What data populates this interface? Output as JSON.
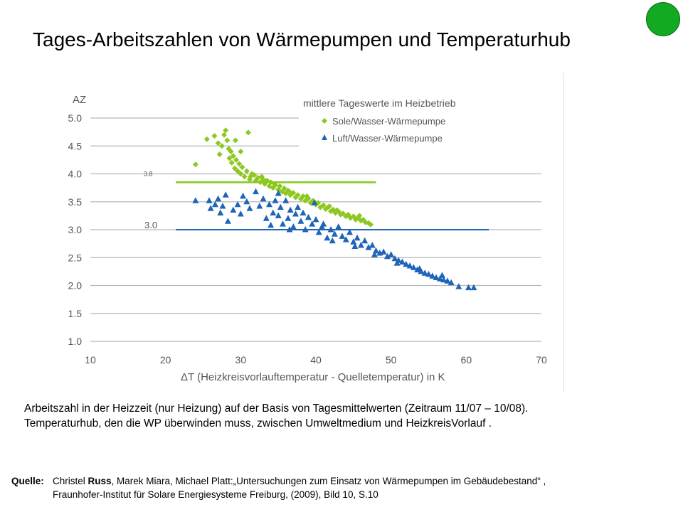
{
  "title": "Tages-Arbeitszahlen von Wärmepumpen und Temperaturhub",
  "caption": {
    "line1": "Arbeitszahl in der Heizzeit (nur Heizung) auf der Basis von Tagesmittelwerten (Zeitraum 11/07 – 10/08).",
    "line2": "Temperaturhub, den die WP überwinden muss, zwischen  Umweltmedium und HeizkreisVorlauf  ."
  },
  "source": {
    "label": "Quelle:",
    "author_pre": "Christel ",
    "author_bold": "Russ",
    "line1_rest": ", Marek Miara, Michael Platt:„Untersuchungen zum Einsatz von Wärmepumpen im Gebäudebestand“ ,",
    "line2": "Fraunhofer-Institut für Solare Energiesysteme Freiburg, (2009), Bild 10, S.10"
  },
  "colors": {
    "sole": "#8cc820",
    "luft": "#1f64b8",
    "badge": "#11aa22"
  },
  "chart_data": {
    "type": "scatter",
    "ylabel": "AZ",
    "xlabel": "ΔT (Heizkreisvorlauftemperatur - Quelletemperatur) in K",
    "xlim": [
      10,
      70
    ],
    "ylim": [
      1.0,
      5.0
    ],
    "xticks": [
      "10",
      "20",
      "30",
      "40",
      "50",
      "60",
      "70"
    ],
    "yticks": [
      "1.0",
      "1.5",
      "2.0",
      "2.5",
      "3.0",
      "3.5",
      "4.0",
      "4.5",
      "5.0"
    ],
    "grid": "horizontal",
    "legend_title": "mittlere Tageswerte im Heizbetrieb",
    "legend_position": "top-right",
    "series": [
      {
        "name": "Sole/Wasser-Wärmepumpe",
        "marker": "diamond",
        "points": [
          [
            24.0,
            4.17
          ],
          [
            25.5,
            4.62
          ],
          [
            26.5,
            4.68
          ],
          [
            27.0,
            4.55
          ],
          [
            27.2,
            4.35
          ],
          [
            27.5,
            4.5
          ],
          [
            27.8,
            4.7
          ],
          [
            28.0,
            4.78
          ],
          [
            28.2,
            4.6
          ],
          [
            28.4,
            4.45
          ],
          [
            28.5,
            4.28
          ],
          [
            28.7,
            4.4
          ],
          [
            28.8,
            4.2
          ],
          [
            29.0,
            4.32
          ],
          [
            29.2,
            4.1
          ],
          [
            29.3,
            4.6
          ],
          [
            29.4,
            4.25
          ],
          [
            29.6,
            4.05
          ],
          [
            29.8,
            4.18
          ],
          [
            30.0,
            4.0
          ],
          [
            30.0,
            4.4
          ],
          [
            30.2,
            4.12
          ],
          [
            30.5,
            3.95
          ],
          [
            30.8,
            4.05
          ],
          [
            31.0,
            4.74
          ],
          [
            31.2,
            3.9
          ],
          [
            31.5,
            4.0
          ],
          [
            31.8,
            3.98
          ],
          [
            32.0,
            3.88
          ],
          [
            32.3,
            3.93
          ],
          [
            32.6,
            3.85
          ],
          [
            33.0,
            3.9
          ],
          [
            33.2,
            3.82
          ],
          [
            33.5,
            3.88
          ],
          [
            33.8,
            3.78
          ],
          [
            34.0,
            3.85
          ],
          [
            34.3,
            3.75
          ],
          [
            34.6,
            3.8
          ],
          [
            35.0,
            3.72
          ],
          [
            35.2,
            3.78
          ],
          [
            35.5,
            3.68
          ],
          [
            35.8,
            3.74
          ],
          [
            36.0,
            3.65
          ],
          [
            36.3,
            3.7
          ],
          [
            36.6,
            3.62
          ],
          [
            37.0,
            3.66
          ],
          [
            37.3,
            3.58
          ],
          [
            37.6,
            3.62
          ],
          [
            38.0,
            3.55
          ],
          [
            38.3,
            3.6
          ],
          [
            38.6,
            3.52
          ],
          [
            39.0,
            3.56
          ],
          [
            39.3,
            3.48
          ],
          [
            39.6,
            3.52
          ],
          [
            40.0,
            3.45
          ],
          [
            40.3,
            3.48
          ],
          [
            40.6,
            3.4
          ],
          [
            41.0,
            3.44
          ],
          [
            41.3,
            3.37
          ],
          [
            41.6,
            3.4
          ],
          [
            42.0,
            3.33
          ],
          [
            42.3,
            3.36
          ],
          [
            42.6,
            3.3
          ],
          [
            43.0,
            3.33
          ],
          [
            43.3,
            3.27
          ],
          [
            43.6,
            3.29
          ],
          [
            44.0,
            3.24
          ],
          [
            44.3,
            3.27
          ],
          [
            44.6,
            3.21
          ],
          [
            45.0,
            3.24
          ],
          [
            45.3,
            3.18
          ],
          [
            45.6,
            3.21
          ],
          [
            46.0,
            3.16
          ],
          [
            46.3,
            3.18
          ],
          [
            46.6,
            3.13
          ],
          [
            47.0,
            3.12
          ],
          [
            47.3,
            3.09
          ],
          [
            36.5,
            3.68
          ],
          [
            34.5,
            3.82
          ],
          [
            32.8,
            3.95
          ],
          [
            31.3,
            3.95
          ],
          [
            39.8,
            3.5
          ],
          [
            42.8,
            3.35
          ],
          [
            45.8,
            3.25
          ],
          [
            38.8,
            3.6
          ],
          [
            41.8,
            3.42
          ]
        ]
      },
      {
        "name": "Luft/Wasser-Wärmepumpe",
        "marker": "triangle",
        "points": [
          [
            24.0,
            3.52
          ],
          [
            25.8,
            3.52
          ],
          [
            26.0,
            3.38
          ],
          [
            26.6,
            3.45
          ],
          [
            27.0,
            3.55
          ],
          [
            27.3,
            3.3
          ],
          [
            27.6,
            3.42
          ],
          [
            28.0,
            3.62
          ],
          [
            28.3,
            3.15
          ],
          [
            29.0,
            3.35
          ],
          [
            29.6,
            3.45
          ],
          [
            30.0,
            3.28
          ],
          [
            30.3,
            3.6
          ],
          [
            30.8,
            3.5
          ],
          [
            31.2,
            3.38
          ],
          [
            32.0,
            3.68
          ],
          [
            32.5,
            3.42
          ],
          [
            33.0,
            3.55
          ],
          [
            33.4,
            3.2
          ],
          [
            33.8,
            3.45
          ],
          [
            34.0,
            3.08
          ],
          [
            34.3,
            3.3
          ],
          [
            34.6,
            3.52
          ],
          [
            35.0,
            3.25
          ],
          [
            35.3,
            3.4
          ],
          [
            35.6,
            3.1
          ],
          [
            36.0,
            3.52
          ],
          [
            36.3,
            3.2
          ],
          [
            36.6,
            3.35
          ],
          [
            37.0,
            3.05
          ],
          [
            37.3,
            3.28
          ],
          [
            37.6,
            3.4
          ],
          [
            38.0,
            3.15
          ],
          [
            38.3,
            3.3
          ],
          [
            38.6,
            3.0
          ],
          [
            39.0,
            3.22
          ],
          [
            39.5,
            3.1
          ],
          [
            40.0,
            3.18
          ],
          [
            40.4,
            2.95
          ],
          [
            41.0,
            3.1
          ],
          [
            41.5,
            2.85
          ],
          [
            42.0,
            3.0
          ],
          [
            42.5,
            2.92
          ],
          [
            43.0,
            3.05
          ],
          [
            43.5,
            2.88
          ],
          [
            44.0,
            2.82
          ],
          [
            44.5,
            2.95
          ],
          [
            45.0,
            2.78
          ],
          [
            45.5,
            2.85
          ],
          [
            46.0,
            2.72
          ],
          [
            46.5,
            2.8
          ],
          [
            47.0,
            2.68
          ],
          [
            47.5,
            2.72
          ],
          [
            48.0,
            2.62
          ],
          [
            48.5,
            2.58
          ],
          [
            49.0,
            2.6
          ],
          [
            49.5,
            2.52
          ],
          [
            50.0,
            2.55
          ],
          [
            50.5,
            2.48
          ],
          [
            51.0,
            2.45
          ],
          [
            51.5,
            2.42
          ],
          [
            52.0,
            2.38
          ],
          [
            52.5,
            2.35
          ],
          [
            53.0,
            2.32
          ],
          [
            53.5,
            2.28
          ],
          [
            54.0,
            2.25
          ],
          [
            54.5,
            2.22
          ],
          [
            55.0,
            2.2
          ],
          [
            55.5,
            2.17
          ],
          [
            56.0,
            2.14
          ],
          [
            56.5,
            2.12
          ],
          [
            57.0,
            2.1
          ],
          [
            57.5,
            2.08
          ],
          [
            58.0,
            2.05
          ],
          [
            59.0,
            1.98
          ],
          [
            60.3,
            1.96
          ],
          [
            61.0,
            1.96
          ],
          [
            35.0,
            3.65
          ],
          [
            39.8,
            3.48
          ],
          [
            42.2,
            2.8
          ],
          [
            36.5,
            3.0
          ],
          [
            45.2,
            2.7
          ],
          [
            47.8,
            2.55
          ],
          [
            50.8,
            2.4
          ],
          [
            53.8,
            2.3
          ],
          [
            56.8,
            2.18
          ],
          [
            40.8,
            3.05
          ]
        ]
      }
    ],
    "reference_lines": [
      {
        "label": "3.8",
        "y": 3.85,
        "x_from": 21,
        "x_to": 48,
        "series": "Sole/Wasser-Wärmepumpe"
      },
      {
        "label": "3.0",
        "y": 3.0,
        "x_from": 21,
        "x_to": 63,
        "series": "Luft/Wasser-Wärmepumpe"
      }
    ]
  }
}
